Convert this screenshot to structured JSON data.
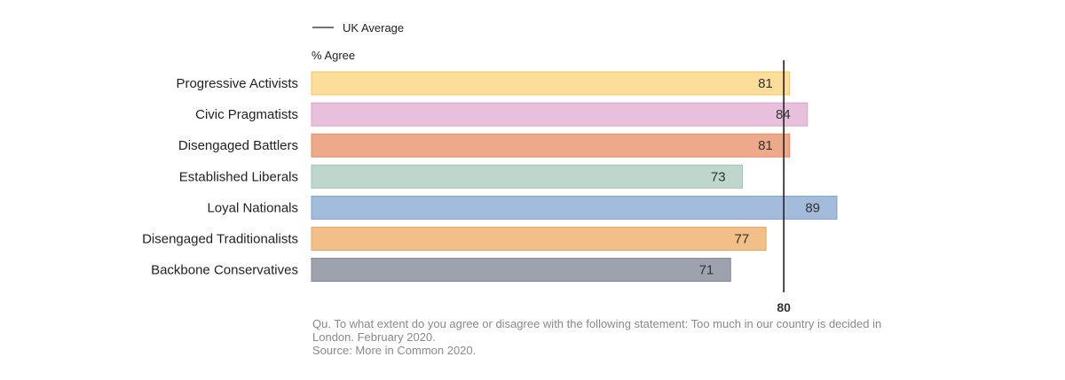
{
  "chart_data": {
    "type": "bar",
    "orientation": "horizontal",
    "categories": [
      "Progressive Activists",
      "Civic Pragmatists",
      "Disengaged Battlers",
      "Established Liberals",
      "Loyal Nationals",
      "Disengaged Traditionalists",
      "Backbone Conservatives"
    ],
    "values": [
      81,
      84,
      81,
      73,
      89,
      77,
      71
    ],
    "colors": [
      "#fddd9a",
      "#e8c0dc",
      "#eda98a",
      "#bed6cc",
      "#a3bcdc",
      "#f1bf87",
      "#9da2ad"
    ],
    "bar_edge_colors": [
      "#f5c866",
      "#d7a2c8",
      "#e08e6b",
      "#a3c1b4",
      "#82a1c8",
      "#e6a560",
      "#7f8593"
    ],
    "unit_label": "% Agree",
    "reference_line": {
      "label": "UK Average",
      "value": 80,
      "tick_label": "80",
      "color": "#222222"
    },
    "xlim": [
      0,
      89
    ],
    "grid": false,
    "legend_placement": "top-left"
  },
  "notes": {
    "question": "Qu. To what extent do you agree or disagree with the following statement: Too much in our country is decided in London. February 2020.",
    "source": "Source: More in Common 2020."
  }
}
